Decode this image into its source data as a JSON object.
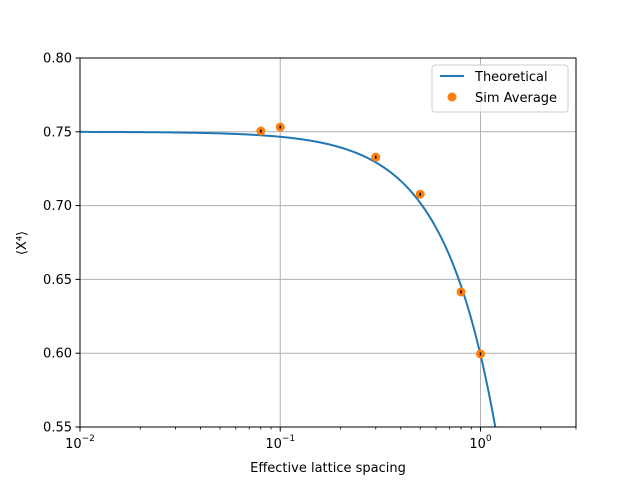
{
  "chart_data": {
    "type": "line",
    "xlabel": "Effective lattice spacing",
    "ylabel": "⟨X⁴⟩",
    "x_scale": "log",
    "xlim": [
      0.01,
      3
    ],
    "ylim": [
      0.55,
      0.8
    ],
    "grid": true,
    "x_tick_labels": [
      {
        "value": 0.01,
        "base": "10",
        "exp": "−2"
      },
      {
        "value": 0.1,
        "base": "10",
        "exp": "−1"
      },
      {
        "value": 1,
        "base": "10",
        "exp": "0"
      }
    ],
    "y_ticks": [
      0.55,
      0.6,
      0.65,
      0.7,
      0.75,
      0.8
    ],
    "y_tick_labels": [
      "0.55",
      "0.60",
      "0.65",
      "0.70",
      "0.75",
      "0.80"
    ],
    "legend": {
      "position": "upper right",
      "entries": [
        "Theoretical",
        "Sim Average"
      ]
    },
    "series": [
      {
        "name": "Theoretical",
        "kind": "line",
        "color": "#1f77b4",
        "model": {
          "form": "y = a - b*x^c",
          "a": 0.75,
          "b": 0.151,
          "c": 1.65
        },
        "x_range": [
          0.01,
          1.2
        ]
      },
      {
        "name": "Sim Average",
        "kind": "scatter",
        "color": "#ff7f0e",
        "x": [
          0.08,
          0.1,
          0.3,
          0.5,
          0.8,
          1.0
        ],
        "y": [
          0.7505,
          0.7532,
          0.7328,
          0.7077,
          0.6415,
          0.5995
        ]
      }
    ]
  }
}
